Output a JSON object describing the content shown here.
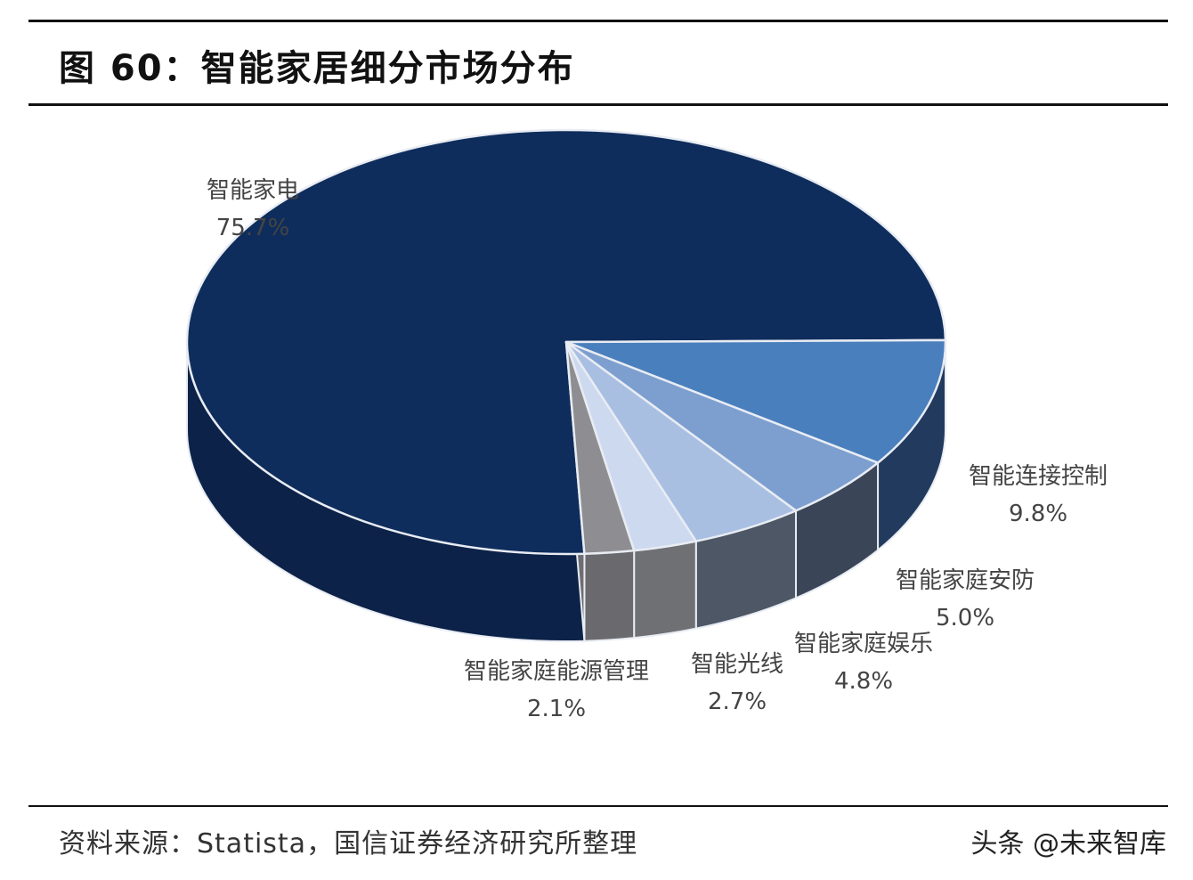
{
  "figure_title": "图 60：智能家居细分市场分布",
  "source": "资料来源：Statista，国信证券经济研究所整理",
  "watermark": "头条 @未来智库",
  "chart_data": {
    "type": "pie",
    "title": "图 60：智能家居细分市场分布",
    "slices": [
      {
        "name": "智能家电",
        "value": 75.7,
        "label": "75.7%",
        "color": "#0f2d5c",
        "side_color": "#0c2248"
      },
      {
        "name": "智能连接控制",
        "value": 9.8,
        "label": "9.8%",
        "color": "#4a7fbd",
        "side_color": "#223a5e"
      },
      {
        "name": "智能家庭安防",
        "value": 5.0,
        "label": "5.0%",
        "color": "#7d9fd0",
        "side_color": "#3a4658"
      },
      {
        "name": "智能家庭娱乐",
        "value": 4.8,
        "label": "4.8%",
        "color": "#a8bfe2",
        "side_color": "#4e5766"
      },
      {
        "name": "智能光线",
        "value": 2.7,
        "label": "2.7%",
        "color": "#cdd9ee",
        "side_color": "#6e7074"
      },
      {
        "name": "智能家庭能源管理",
        "value": 2.1,
        "label": "2.1%",
        "color": "#8e8e92",
        "side_color": "#6a6a6e"
      }
    ],
    "legend": "none",
    "style": "3d"
  }
}
